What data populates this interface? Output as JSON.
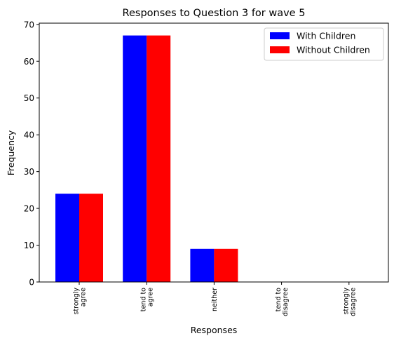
{
  "chart_data": {
    "type": "bar",
    "title": "Responses to Question 3 for wave 5",
    "xlabel": "Responses",
    "ylabel": "Frequency",
    "ylim": [
      0,
      70.35
    ],
    "yticks": [
      0,
      10,
      20,
      30,
      40,
      50,
      60,
      70
    ],
    "categories": [
      [
        "strongly",
        "agree"
      ],
      [
        "tend to",
        "agree"
      ],
      [
        "neither"
      ],
      [
        "tend to",
        "disagree"
      ],
      [
        "strongly",
        "disagree"
      ]
    ],
    "series": [
      {
        "name": "With Children",
        "color": "#0000ff",
        "values": [
          24,
          67,
          9,
          0,
          0
        ]
      },
      {
        "name": "Without Children",
        "color": "#ff0000",
        "values": [
          24,
          67,
          9,
          0,
          0
        ]
      }
    ],
    "legend_position": "top-right",
    "grid": false
  }
}
